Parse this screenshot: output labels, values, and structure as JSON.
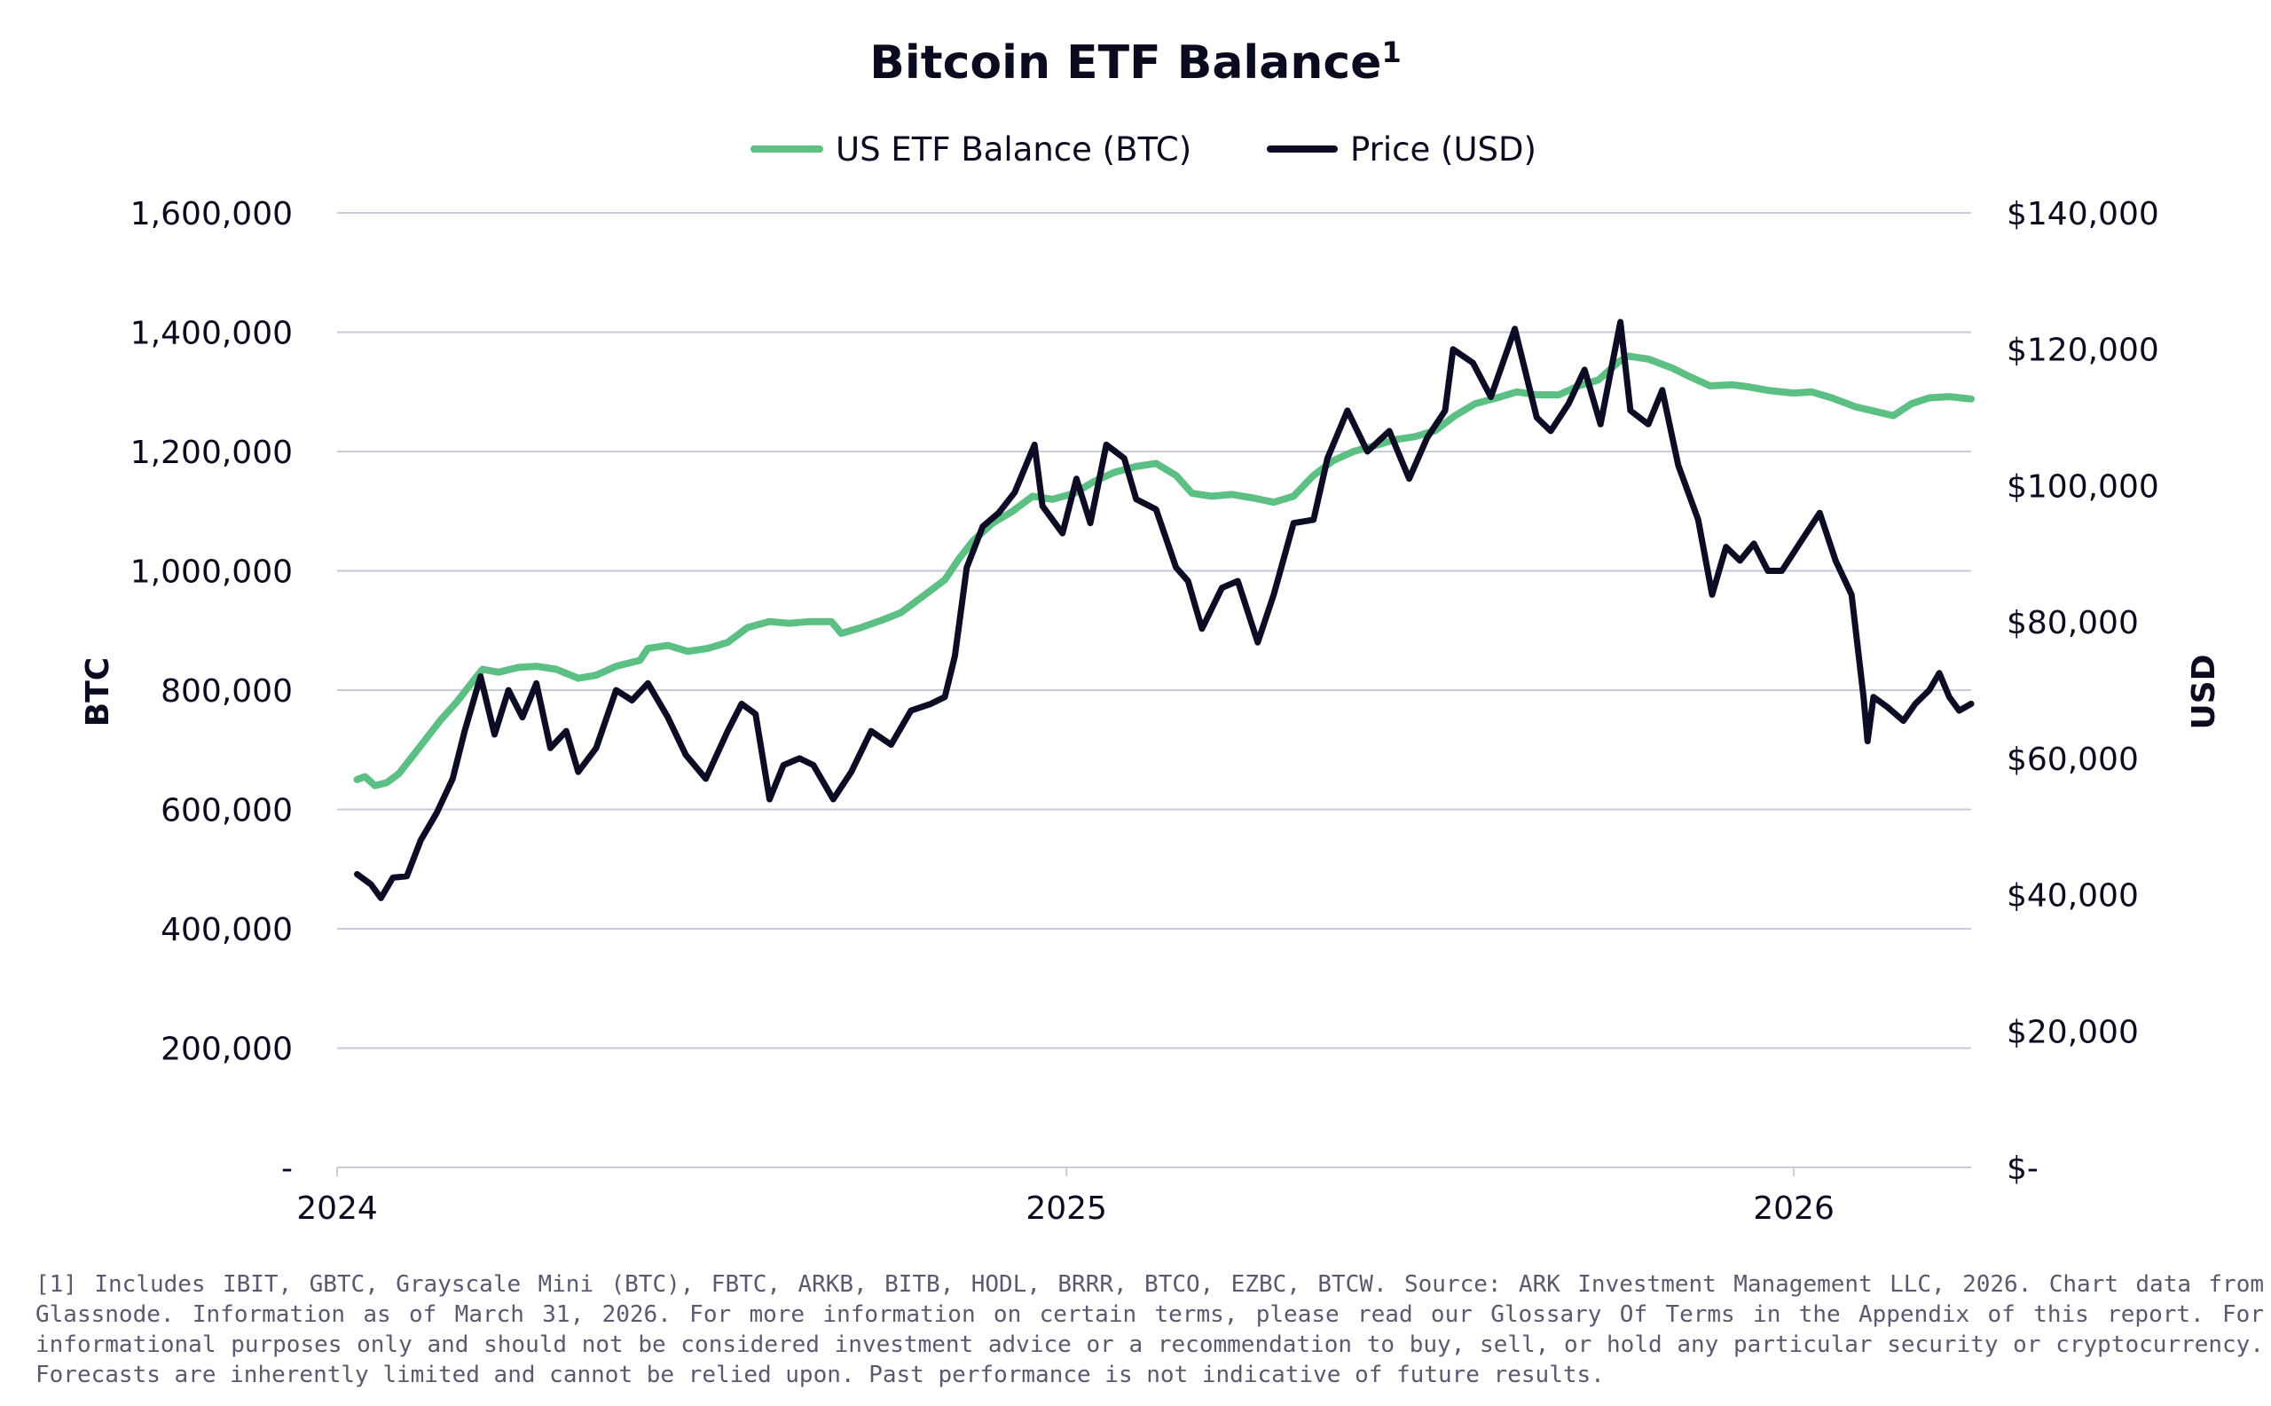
{
  "chart_data": {
    "type": "line",
    "title": "Bitcoin ETF Balance",
    "title_superscript": "1",
    "ylabel": "BTC",
    "y2label": "USD",
    "grid": true,
    "legend_placement": "top-center",
    "colors": {
      "etf": "#5cbf83",
      "price": "#0c0c24"
    },
    "x_tick_labels": [
      "2024",
      "2025",
      "2026"
    ],
    "y_tick_labels": [
      "-",
      "200,000",
      "400,000",
      "600,000",
      "800,000",
      "1,000,000",
      "1,200,000",
      "1,400,000",
      "1,600,000"
    ],
    "y2_tick_labels": [
      "$-",
      "$20,000",
      "$40,000",
      "$60,000",
      "$80,000",
      "$100,000",
      "$120,000",
      "$140,000"
    ],
    "xlim": [
      "2024-01-01",
      "2026-03-31"
    ],
    "ylim": [
      0,
      1600000
    ],
    "y2lim": [
      0,
      140000
    ],
    "series": [
      {
        "name": "US ETF Balance (BTC)",
        "axis": "left",
        "points": [
          [
            "2024-01-11",
            650000
          ],
          [
            "2024-01-15",
            655000
          ],
          [
            "2024-01-20",
            640000
          ],
          [
            "2024-01-26",
            645000
          ],
          [
            "2024-02-01",
            660000
          ],
          [
            "2024-02-08",
            690000
          ],
          [
            "2024-02-15",
            720000
          ],
          [
            "2024-02-22",
            750000
          ],
          [
            "2024-03-01",
            780000
          ],
          [
            "2024-03-08",
            810000
          ],
          [
            "2024-03-14",
            835000
          ],
          [
            "2024-03-22",
            830000
          ],
          [
            "2024-04-01",
            838000
          ],
          [
            "2024-04-10",
            840000
          ],
          [
            "2024-04-20",
            835000
          ],
          [
            "2024-05-01",
            820000
          ],
          [
            "2024-05-10",
            825000
          ],
          [
            "2024-05-20",
            840000
          ],
          [
            "2024-06-01",
            850000
          ],
          [
            "2024-06-05",
            870000
          ],
          [
            "2024-06-15",
            875000
          ],
          [
            "2024-06-25",
            865000
          ],
          [
            "2024-07-05",
            870000
          ],
          [
            "2024-07-15",
            880000
          ],
          [
            "2024-07-25",
            905000
          ],
          [
            "2024-08-05",
            915000
          ],
          [
            "2024-08-15",
            912000
          ],
          [
            "2024-08-25",
            915000
          ],
          [
            "2024-09-05",
            915000
          ],
          [
            "2024-09-10",
            895000
          ],
          [
            "2024-09-20",
            905000
          ],
          [
            "2024-10-01",
            918000
          ],
          [
            "2024-10-10",
            930000
          ],
          [
            "2024-10-20",
            955000
          ],
          [
            "2024-11-01",
            985000
          ],
          [
            "2024-11-08",
            1020000
          ],
          [
            "2024-11-15",
            1050000
          ],
          [
            "2024-11-25",
            1080000
          ],
          [
            "2024-12-05",
            1100000
          ],
          [
            "2024-12-15",
            1125000
          ],
          [
            "2024-12-25",
            1120000
          ],
          [
            "2025-01-05",
            1130000
          ],
          [
            "2025-01-15",
            1150000
          ],
          [
            "2025-01-25",
            1165000
          ],
          [
            "2025-02-05",
            1175000
          ],
          [
            "2025-02-15",
            1180000
          ],
          [
            "2025-02-25",
            1160000
          ],
          [
            "2025-03-05",
            1130000
          ],
          [
            "2025-03-15",
            1125000
          ],
          [
            "2025-03-25",
            1128000
          ],
          [
            "2025-04-05",
            1122000
          ],
          [
            "2025-04-15",
            1115000
          ],
          [
            "2025-04-25",
            1125000
          ],
          [
            "2025-05-05",
            1160000
          ],
          [
            "2025-05-15",
            1185000
          ],
          [
            "2025-05-25",
            1200000
          ],
          [
            "2025-06-05",
            1210000
          ],
          [
            "2025-06-15",
            1220000
          ],
          [
            "2025-06-25",
            1225000
          ],
          [
            "2025-07-05",
            1235000
          ],
          [
            "2025-07-15",
            1260000
          ],
          [
            "2025-07-25",
            1280000
          ],
          [
            "2025-08-05",
            1290000
          ],
          [
            "2025-08-15",
            1300000
          ],
          [
            "2025-08-25",
            1295000
          ],
          [
            "2025-09-05",
            1295000
          ],
          [
            "2025-09-15",
            1310000
          ],
          [
            "2025-09-25",
            1320000
          ],
          [
            "2025-10-05",
            1350000
          ],
          [
            "2025-10-10",
            1360000
          ],
          [
            "2025-10-20",
            1355000
          ],
          [
            "2025-11-01",
            1340000
          ],
          [
            "2025-11-10",
            1325000
          ],
          [
            "2025-11-20",
            1310000
          ],
          [
            "2025-12-01",
            1312000
          ],
          [
            "2025-12-10",
            1308000
          ],
          [
            "2025-12-20",
            1302000
          ],
          [
            "2026-01-01",
            1298000
          ],
          [
            "2026-01-10",
            1300000
          ],
          [
            "2026-01-20",
            1290000
          ],
          [
            "2026-02-01",
            1275000
          ],
          [
            "2026-02-10",
            1268000
          ],
          [
            "2026-02-20",
            1260000
          ],
          [
            "2026-03-01",
            1280000
          ],
          [
            "2026-03-10",
            1290000
          ],
          [
            "2026-03-20",
            1292000
          ],
          [
            "2026-03-31",
            1288000
          ]
        ]
      },
      {
        "name": "Price (USD)",
        "axis": "right",
        "points": [
          [
            "2024-01-11",
            43000
          ],
          [
            "2024-01-18",
            41500
          ],
          [
            "2024-01-23",
            39500
          ],
          [
            "2024-01-29",
            42500
          ],
          [
            "2024-02-05",
            42700
          ],
          [
            "2024-02-12",
            48000
          ],
          [
            "2024-02-20",
            52000
          ],
          [
            "2024-02-28",
            57000
          ],
          [
            "2024-03-05",
            64000
          ],
          [
            "2024-03-13",
            72000
          ],
          [
            "2024-03-20",
            63500
          ],
          [
            "2024-03-27",
            70000
          ],
          [
            "2024-04-03",
            66000
          ],
          [
            "2024-04-10",
            71000
          ],
          [
            "2024-04-17",
            61500
          ],
          [
            "2024-04-25",
            64000
          ],
          [
            "2024-05-01",
            58000
          ],
          [
            "2024-05-10",
            61500
          ],
          [
            "2024-05-20",
            70000
          ],
          [
            "2024-05-28",
            68500
          ],
          [
            "2024-06-05",
            71000
          ],
          [
            "2024-06-15",
            66000
          ],
          [
            "2024-06-24",
            60500
          ],
          [
            "2024-07-04",
            57000
          ],
          [
            "2024-07-15",
            64000
          ],
          [
            "2024-07-22",
            68000
          ],
          [
            "2024-07-29",
            66500
          ],
          [
            "2024-08-05",
            54000
          ],
          [
            "2024-08-12",
            59000
          ],
          [
            "2024-08-20",
            60000
          ],
          [
            "2024-08-27",
            59000
          ],
          [
            "2024-09-06",
            54000
          ],
          [
            "2024-09-15",
            58000
          ],
          [
            "2024-09-25",
            64000
          ],
          [
            "2024-10-05",
            62000
          ],
          [
            "2024-10-15",
            67000
          ],
          [
            "2024-10-25",
            68000
          ],
          [
            "2024-11-01",
            69000
          ],
          [
            "2024-11-06",
            75000
          ],
          [
            "2024-11-12",
            88000
          ],
          [
            "2024-11-20",
            94000
          ],
          [
            "2024-11-28",
            96000
          ],
          [
            "2024-12-06",
            99000
          ],
          [
            "2024-12-16",
            106000
          ],
          [
            "2024-12-20",
            97000
          ],
          [
            "2024-12-30",
            93000
          ],
          [
            "2025-01-06",
            101000
          ],
          [
            "2025-01-13",
            94500
          ],
          [
            "2025-01-21",
            106000
          ],
          [
            "2025-01-30",
            104000
          ],
          [
            "2025-02-05",
            98000
          ],
          [
            "2025-02-15",
            96500
          ],
          [
            "2025-02-25",
            88000
          ],
          [
            "2025-03-03",
            86000
          ],
          [
            "2025-03-10",
            79000
          ],
          [
            "2025-03-20",
            85000
          ],
          [
            "2025-03-28",
            86000
          ],
          [
            "2025-04-07",
            77000
          ],
          [
            "2025-04-15",
            84000
          ],
          [
            "2025-04-25",
            94500
          ],
          [
            "2025-05-05",
            95000
          ],
          [
            "2025-05-12",
            104000
          ],
          [
            "2025-05-22",
            111000
          ],
          [
            "2025-06-01",
            105000
          ],
          [
            "2025-06-12",
            108000
          ],
          [
            "2025-06-22",
            101000
          ],
          [
            "2025-07-01",
            107000
          ],
          [
            "2025-07-10",
            111000
          ],
          [
            "2025-07-14",
            120000
          ],
          [
            "2025-07-24",
            118000
          ],
          [
            "2025-08-02",
            113000
          ],
          [
            "2025-08-14",
            123000
          ],
          [
            "2025-08-25",
            110000
          ],
          [
            "2025-09-01",
            108000
          ],
          [
            "2025-09-10",
            112000
          ],
          [
            "2025-09-18",
            117000
          ],
          [
            "2025-09-26",
            109000
          ],
          [
            "2025-10-06",
            124000
          ],
          [
            "2025-10-11",
            111000
          ],
          [
            "2025-10-20",
            109000
          ],
          [
            "2025-10-27",
            114000
          ],
          [
            "2025-11-04",
            103000
          ],
          [
            "2025-11-14",
            95000
          ],
          [
            "2025-11-21",
            84000
          ],
          [
            "2025-11-28",
            91000
          ],
          [
            "2025-12-05",
            89000
          ],
          [
            "2025-12-12",
            91500
          ],
          [
            "2025-12-19",
            87500
          ],
          [
            "2025-12-26",
            87500
          ],
          [
            "2026-01-05",
            92000
          ],
          [
            "2026-01-14",
            96000
          ],
          [
            "2026-01-22",
            89000
          ],
          [
            "2026-01-30",
            84000
          ],
          [
            "2026-02-05",
            69000
          ],
          [
            "2026-02-07",
            62500
          ],
          [
            "2026-02-10",
            69000
          ],
          [
            "2026-02-17",
            67500
          ],
          [
            "2026-02-25",
            65500
          ],
          [
            "2026-03-03",
            68000
          ],
          [
            "2026-03-10",
            70000
          ],
          [
            "2026-03-15",
            72500
          ],
          [
            "2026-03-20",
            69000
          ],
          [
            "2026-03-25",
            67000
          ],
          [
            "2026-03-31",
            68000
          ]
        ]
      }
    ]
  },
  "footnote": "[1] Includes IBIT, GBTC, Grayscale Mini (BTC), FBTC, ARKB, BITB, HODL, BRRR, BTCO, EZBC, BTCW. Source: ARK Investment Management LLC, 2026. Chart data from Glassnode. Information as of March 31, 2026. For more information on certain terms, please read our Glossary Of Terms in the Appendix of this report. For informational purposes only and should not be considered investment advice or a recommendation to buy, sell, or hold any particular security or cryptocurrency. Forecasts are inherently limited and cannot be relied upon. Past performance is not indicative of future results."
}
